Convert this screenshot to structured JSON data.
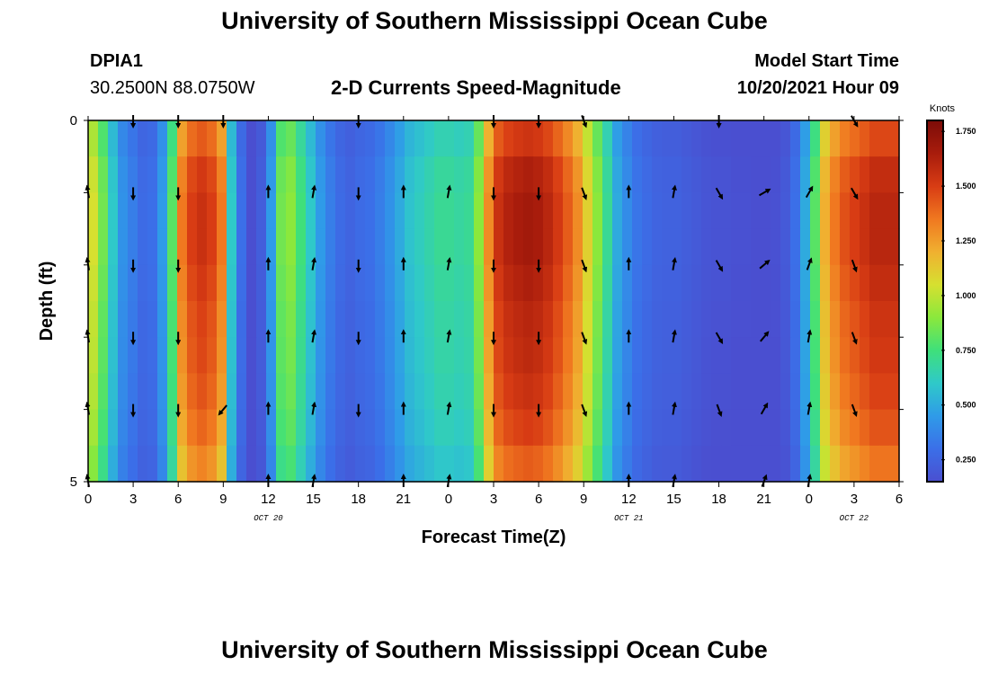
{
  "page": {
    "title": "University of Southern Mississippi Ocean Cube",
    "footer_title": "University of Southern Mississippi Ocean Cube",
    "station_id": "DPIA1",
    "station_coords": "30.2500N  88.0750W",
    "subtitle": "2-D Currents Speed-Magnitude",
    "model_start_label": "Model Start Time",
    "model_start_value": "10/20/2021 Hour 09"
  },
  "colors": {
    "arrow": "#000000",
    "frame": "#000000",
    "colormap": [
      "#4a4fd0",
      "#3b6fe8",
      "#2f9be8",
      "#2fc9c9",
      "#3fe07a",
      "#8be83c",
      "#d6e030",
      "#f0b030",
      "#f07820",
      "#d83c14",
      "#a81c0c",
      "#7c0c08"
    ]
  },
  "chart_data": {
    "type": "heatmap",
    "title": "2-D Currents Speed-Magnitude",
    "xlabel": "Forecast Time(Z)",
    "ylabel": "Depth (ft)",
    "x_tick_labels": [
      "0",
      "3",
      "6",
      "9",
      "12",
      "15",
      "18",
      "21",
      "0",
      "3",
      "6",
      "9",
      "12",
      "15",
      "18",
      "21",
      "0",
      "3",
      "6"
    ],
    "x_range_hours": [
      0,
      54
    ],
    "date_labels": [
      {
        "text": "OCT 20",
        "hour": 12
      },
      {
        "text": "OCT 21",
        "hour": 36
      },
      {
        "text": "OCT 22",
        "hour": 51
      }
    ],
    "y_tick_labels": [
      "0",
      "5"
    ],
    "y_range_ft": [
      0,
      5
    ],
    "colorbar": {
      "label": "Knots",
      "range": [
        0.15,
        1.8
      ],
      "ticks": [
        "0.250",
        "0.500",
        "0.750",
        "1.000",
        "1.250",
        "1.500",
        "1.750"
      ],
      "tick_values": [
        0.25,
        0.5,
        0.75,
        1.0,
        1.25,
        1.5,
        1.75
      ]
    },
    "speed_profile_knots": [
      1.05,
      0.85,
      0.6,
      0.42,
      0.35,
      0.28,
      0.3,
      0.45,
      0.8,
      1.35,
      1.5,
      1.55,
      1.5,
      1.35,
      0.6,
      0.3,
      0.15,
      0.22,
      0.45,
      0.85,
      0.9,
      0.75,
      0.6,
      0.45,
      0.35,
      0.28,
      0.25,
      0.28,
      0.3,
      0.35,
      0.42,
      0.5,
      0.58,
      0.62,
      0.66,
      0.7,
      0.7,
      0.68,
      0.7,
      0.9,
      1.3,
      1.55,
      1.62,
      1.65,
      1.67,
      1.65,
      1.6,
      1.52,
      1.42,
      1.3,
      1.1,
      0.9,
      0.7,
      0.5,
      0.4,
      0.32,
      0.28,
      0.25,
      0.24,
      0.24,
      0.22,
      0.2,
      0.18,
      0.17,
      0.17,
      0.16,
      0.16,
      0.15,
      0.15,
      0.16,
      0.2,
      0.3,
      0.5,
      0.8,
      1.2,
      1.35,
      1.45,
      1.5,
      1.55,
      1.6,
      1.6,
      1.6
    ],
    "depth_factors": [
      0.92,
      0.98,
      1.0,
      1.0,
      0.98,
      0.96,
      0.95,
      0.93,
      0.9,
      0.85
    ],
    "arrow_hours": [
      0,
      3,
      6,
      9,
      12,
      15,
      18,
      21,
      24,
      27,
      30,
      33,
      36,
      39,
      42,
      45,
      48,
      51
    ],
    "arrow_depths_ft": [
      0,
      1,
      2,
      3,
      4,
      5
    ],
    "arrow_directions_deg": [
      [
        null,
        180,
        180,
        180,
        null,
        null,
        180,
        null,
        null,
        180,
        180,
        160,
        null,
        null,
        180,
        null,
        null,
        150
      ],
      [
        350,
        180,
        180,
        null,
        0,
        10,
        180,
        0,
        10,
        180,
        180,
        160,
        0,
        10,
        150,
        60,
        30,
        150
      ],
      [
        350,
        180,
        180,
        null,
        0,
        10,
        180,
        0,
        10,
        180,
        180,
        160,
        0,
        10,
        150,
        50,
        20,
        160
      ],
      [
        350,
        180,
        180,
        null,
        0,
        10,
        180,
        0,
        10,
        180,
        180,
        160,
        0,
        10,
        150,
        40,
        10,
        160
      ],
      [
        350,
        180,
        180,
        220,
        0,
        10,
        180,
        0,
        10,
        180,
        180,
        160,
        0,
        10,
        160,
        30,
        10,
        160
      ],
      [
        350,
        null,
        null,
        null,
        0,
        10,
        null,
        0,
        10,
        null,
        null,
        null,
        0,
        10,
        null,
        20,
        10,
        null
      ]
    ]
  }
}
